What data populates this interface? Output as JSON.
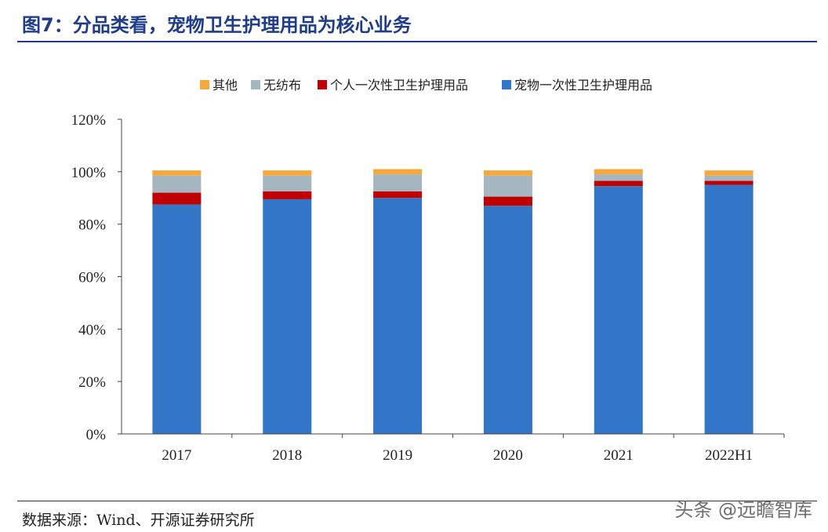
{
  "header": {
    "title": "图7：分品类看，宠物卫生护理用品为核心业务"
  },
  "footer": {
    "source": "数据来源：Wind、开源证券研究所",
    "watermark": "头条 @远瞻智库"
  },
  "chart_data": {
    "type": "bar",
    "stacked": true,
    "categories": [
      "2017",
      "2018",
      "2019",
      "2020",
      "2021",
      "2022H1"
    ],
    "series": [
      {
        "name": "宠物一次性卫生护理用品",
        "color": "#3375c6",
        "values": [
          87.5,
          89.5,
          90.0,
          87.0,
          94.5,
          95.0
        ]
      },
      {
        "name": "个人一次性卫生护理用品",
        "color": "#c00000",
        "values": [
          4.5,
          3.0,
          2.5,
          3.5,
          2.0,
          1.5
        ]
      },
      {
        "name": "无纺布",
        "color": "#a6b6c0",
        "values": [
          6.5,
          6.0,
          6.5,
          8.0,
          2.5,
          2.0
        ]
      },
      {
        "name": "其他",
        "color": "#f5a93a",
        "values": [
          2.0,
          2.0,
          2.0,
          2.0,
          2.0,
          2.0
        ]
      }
    ],
    "legend_order": [
      "其他",
      "无纺布",
      "个人一次性卫生护理用品",
      "宠物一次性卫生护理用品"
    ],
    "legend_position": "top",
    "ylim": [
      0,
      120
    ],
    "yticks": [
      "0%",
      "20%",
      "40%",
      "60%",
      "80%",
      "100%",
      "120%"
    ],
    "grid": false
  }
}
